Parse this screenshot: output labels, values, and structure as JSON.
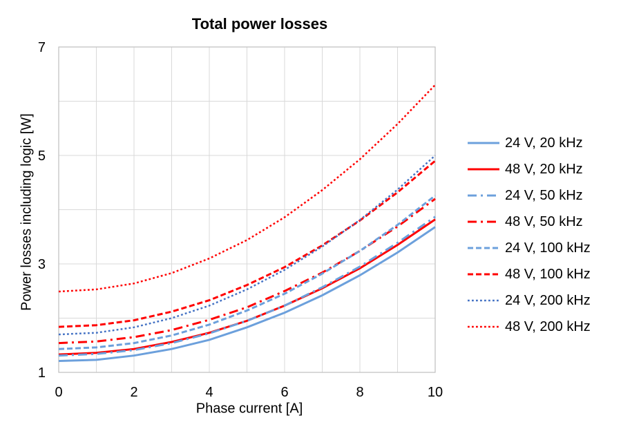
{
  "chart_data": {
    "type": "line",
    "title": "Total power losses",
    "xlabel": "Phase current [A]",
    "ylabel": "Power losses including logic [W]",
    "xlim": [
      0,
      10
    ],
    "ylim": [
      1,
      7
    ],
    "xticks": [
      0,
      2,
      4,
      6,
      8,
      10
    ],
    "yticks": [
      1,
      3,
      5,
      7
    ],
    "grid": "both, 1 unit spacing, light gray",
    "legend_position": "right",
    "colors": {
      "light_blue": "#6CA0DC",
      "royal_blue": "#4472C4",
      "red": "#FF0000",
      "gridline": "#D9D9D9",
      "frame": "#BFBFBF"
    },
    "x": [
      0,
      1,
      2,
      3,
      4,
      5,
      6,
      7,
      8,
      9,
      10
    ],
    "series": [
      {
        "name": "24 V, 20 kHz",
        "color": "#6CA0DC",
        "style": "solid",
        "width": 3,
        "values": [
          1.21,
          1.23,
          1.31,
          1.43,
          1.6,
          1.83,
          2.1,
          2.42,
          2.79,
          3.21,
          3.68
        ]
      },
      {
        "name": "48 V, 20 kHz",
        "color": "#FF0000",
        "style": "solid",
        "width": 3,
        "values": [
          1.33,
          1.36,
          1.43,
          1.56,
          1.73,
          1.95,
          2.23,
          2.55,
          2.92,
          3.35,
          3.82
        ]
      },
      {
        "name": "24 V, 50 kHz",
        "color": "#6CA0DC",
        "style": "dashdot",
        "width": 3,
        "values": [
          1.31,
          1.34,
          1.41,
          1.54,
          1.72,
          1.95,
          2.23,
          2.57,
          2.95,
          3.39,
          3.87
        ]
      },
      {
        "name": "48 V, 50 kHz",
        "color": "#FF0000",
        "style": "dashdot",
        "width": 3,
        "values": [
          1.54,
          1.57,
          1.65,
          1.78,
          1.97,
          2.2,
          2.5,
          2.84,
          3.24,
          3.69,
          4.2
        ]
      },
      {
        "name": "24 V, 100 kHz",
        "color": "#6CA0DC",
        "style": "dashed",
        "width": 3,
        "values": [
          1.43,
          1.46,
          1.54,
          1.68,
          1.88,
          2.14,
          2.45,
          2.82,
          3.24,
          3.72,
          4.26
        ]
      },
      {
        "name": "48 V, 100 kHz",
        "color": "#FF0000",
        "style": "dashed",
        "width": 3,
        "values": [
          1.84,
          1.87,
          1.96,
          2.12,
          2.33,
          2.61,
          2.94,
          3.34,
          3.8,
          4.32,
          4.9
        ]
      },
      {
        "name": "24 V, 200 kHz",
        "color": "#4472C4",
        "style": "dotted",
        "width": 2.5,
        "values": [
          1.7,
          1.73,
          1.83,
          2.0,
          2.23,
          2.53,
          2.89,
          3.32,
          3.81,
          4.37,
          5.0
        ]
      },
      {
        "name": "48 V, 200 kHz",
        "color": "#FF0000",
        "style": "dotted",
        "width": 2.5,
        "values": [
          2.49,
          2.53,
          2.64,
          2.83,
          3.1,
          3.44,
          3.86,
          4.36,
          4.93,
          5.58,
          6.3
        ]
      }
    ]
  }
}
